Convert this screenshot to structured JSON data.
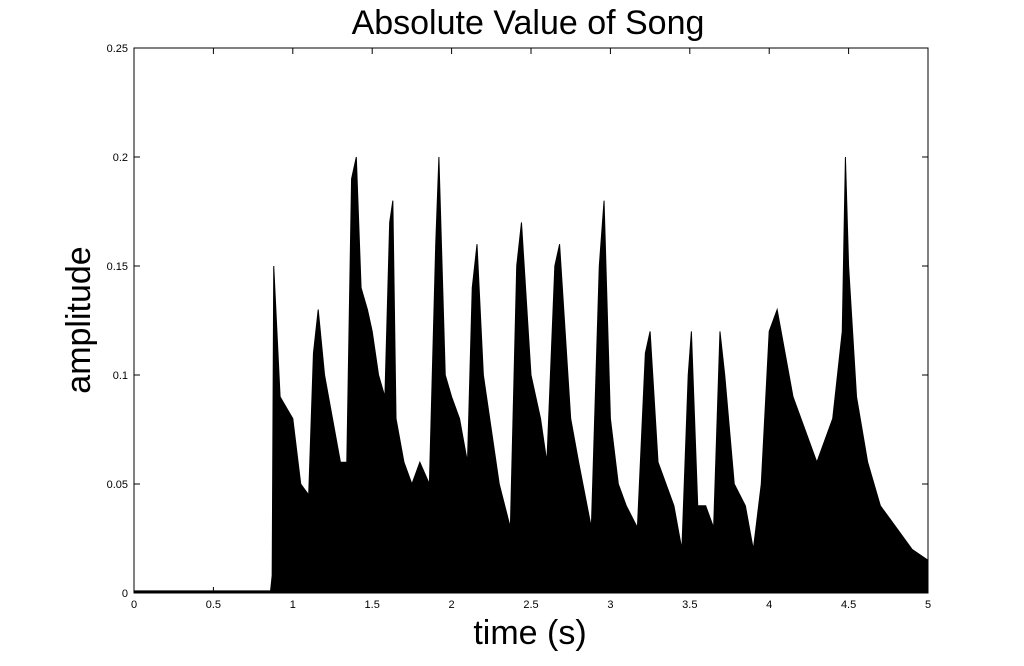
{
  "chart_data": {
    "type": "area",
    "title": "Absolute Value of Song",
    "xlabel": "time (s)",
    "ylabel": "amplitude",
    "xlim": [
      0,
      5
    ],
    "ylim": [
      0,
      0.25
    ],
    "xticks": [
      0,
      0.5,
      1,
      1.5,
      2,
      2.5,
      3,
      3.5,
      4,
      4.5,
      5
    ],
    "xtick_labels": [
      "0",
      "0.5",
      "1",
      "1.5",
      "2",
      "2.5",
      "3",
      "3.5",
      "4",
      "4.5",
      "5"
    ],
    "yticks": [
      0,
      0.05,
      0.1,
      0.15,
      0.2,
      0.25
    ],
    "ytick_labels": [
      "0",
      "0.05",
      "0.1",
      "0.15",
      "0.2",
      "0.25"
    ],
    "grid": false,
    "color": "#000000",
    "series": [
      {
        "x": [
          0,
          0.86,
          0.87,
          0.88,
          0.92,
          0.96,
          1.0,
          1.05,
          1.1,
          1.13,
          1.16,
          1.2,
          1.25,
          1.3,
          1.34,
          1.37,
          1.4,
          1.43,
          1.47,
          1.5,
          1.54,
          1.58,
          1.61,
          1.63,
          1.65,
          1.7,
          1.75,
          1.8,
          1.86,
          1.9,
          1.92,
          1.96,
          2.0,
          2.05,
          2.1,
          2.13,
          2.16,
          2.2,
          2.3,
          2.37,
          2.41,
          2.44,
          2.5,
          2.56,
          2.6,
          2.65,
          2.68,
          2.75,
          2.8,
          2.88,
          2.93,
          2.96,
          3.0,
          3.05,
          3.1,
          3.17,
          3.22,
          3.25,
          3.3,
          3.4,
          3.45,
          3.49,
          3.51,
          3.55,
          3.6,
          3.65,
          3.69,
          3.72,
          3.78,
          3.85,
          3.9,
          3.95,
          4.0,
          4.05,
          4.1,
          4.15,
          4.2,
          4.3,
          4.4,
          4.46,
          4.48,
          4.5,
          4.55,
          4.62,
          4.7,
          4.8,
          4.9,
          5.0
        ],
        "y": [
          0.001,
          0.001,
          0.008,
          0.15,
          0.09,
          0.085,
          0.08,
          0.05,
          0.045,
          0.11,
          0.13,
          0.1,
          0.08,
          0.06,
          0.06,
          0.19,
          0.2,
          0.14,
          0.13,
          0.12,
          0.1,
          0.09,
          0.17,
          0.18,
          0.08,
          0.06,
          0.05,
          0.06,
          0.05,
          0.16,
          0.2,
          0.1,
          0.09,
          0.08,
          0.06,
          0.14,
          0.16,
          0.1,
          0.05,
          0.03,
          0.15,
          0.17,
          0.1,
          0.08,
          0.06,
          0.15,
          0.16,
          0.08,
          0.06,
          0.03,
          0.15,
          0.18,
          0.08,
          0.05,
          0.04,
          0.03,
          0.11,
          0.12,
          0.06,
          0.04,
          0.02,
          0.1,
          0.12,
          0.04,
          0.04,
          0.03,
          0.12,
          0.1,
          0.05,
          0.04,
          0.02,
          0.05,
          0.12,
          0.13,
          0.11,
          0.09,
          0.08,
          0.06,
          0.08,
          0.12,
          0.2,
          0.15,
          0.09,
          0.06,
          0.04,
          0.03,
          0.02,
          0.015
        ]
      }
    ]
  }
}
